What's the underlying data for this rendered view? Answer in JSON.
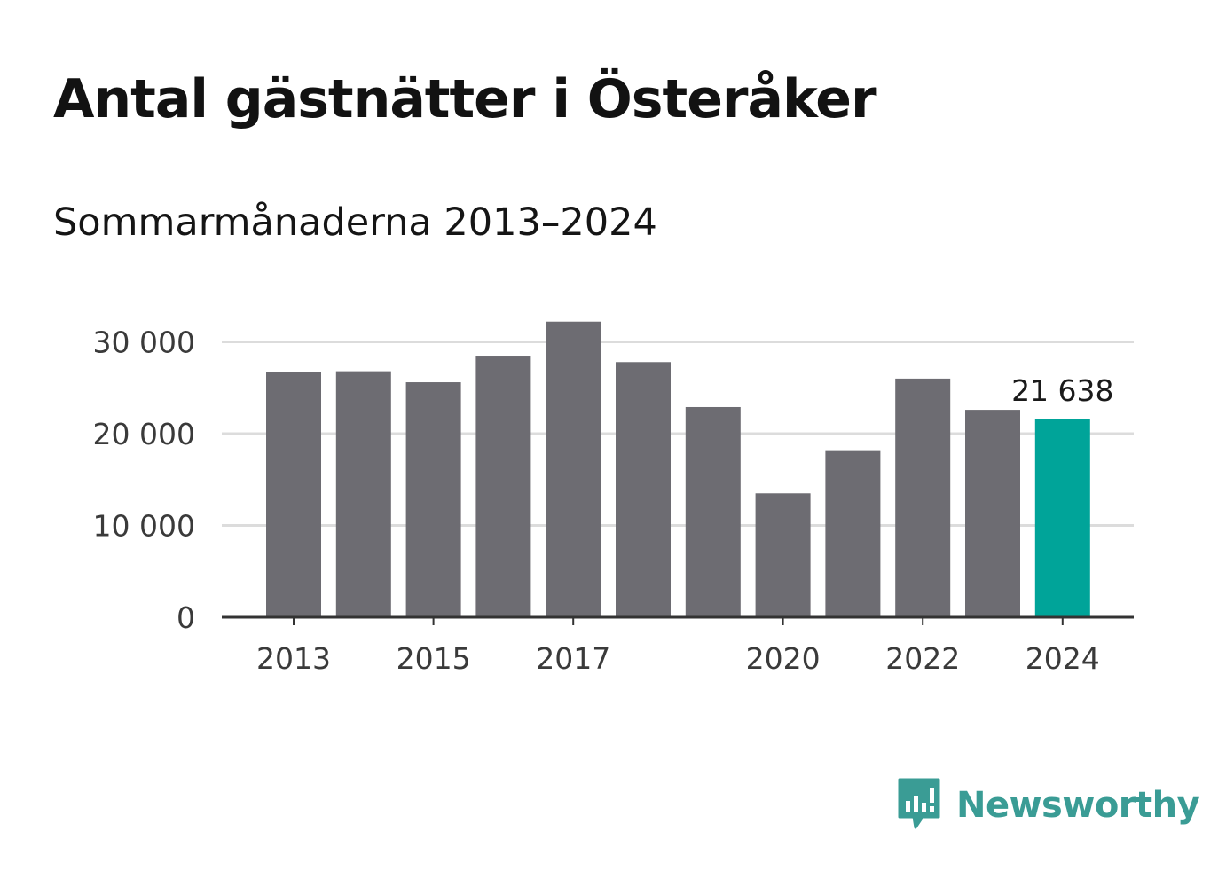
{
  "header": {
    "title": "Antal gästnätter i Österåker",
    "subtitle": "Sommarmånaderna 2013–2024"
  },
  "brand": {
    "name": "Newsworthy",
    "icon": "newsworthy-logo-icon",
    "color": "#3a9c95"
  },
  "chart_data": {
    "type": "bar",
    "categories": [
      "2013",
      "2014",
      "2015",
      "2016",
      "2017",
      "2018",
      "2019",
      "2020",
      "2021",
      "2022",
      "2023",
      "2024"
    ],
    "values": [
      26700,
      26800,
      25600,
      28500,
      32200,
      27800,
      22900,
      13500,
      18200,
      26000,
      22600,
      21638
    ],
    "x_tick_labels": [
      "2013",
      "2015",
      "2017",
      "2020",
      "2022",
      "2024"
    ],
    "y_ticks": [
      0,
      10000,
      20000,
      30000
    ],
    "y_tick_labels": [
      "0",
      "10 000",
      "20 000",
      "30 000"
    ],
    "ylim": [
      0,
      33000
    ],
    "highlight_index": 11,
    "highlight_label": "21 638",
    "colors": {
      "bar": "#6d6c72",
      "highlight": "#00a499",
      "grid": "#dcdcdc",
      "axis": "#333333"
    },
    "grid": true
  }
}
